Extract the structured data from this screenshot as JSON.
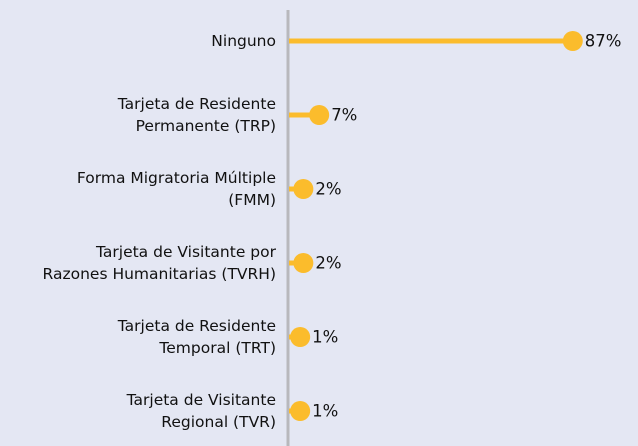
{
  "chart_data": {
    "type": "lollipop",
    "categories": [
      "Ninguno",
      "Tarjeta de Residente\nPermanente (TRP)",
      "Forma Migratoria Múltiple\n(FMM)",
      "Tarjeta de Visitante por\nRazones Humanitarias (TVRH)",
      "Tarjeta de Residente\nTemporal (TRT)",
      "Tarjeta de Visitante\nRegional (TVR)"
    ],
    "values": [
      87,
      7,
      2,
      2,
      1,
      1
    ],
    "value_labels": [
      "87%",
      "7%",
      "2%",
      "2%",
      "1%",
      "1%"
    ],
    "color": "#fbbc2c",
    "xlim": [
      0,
      100
    ]
  }
}
